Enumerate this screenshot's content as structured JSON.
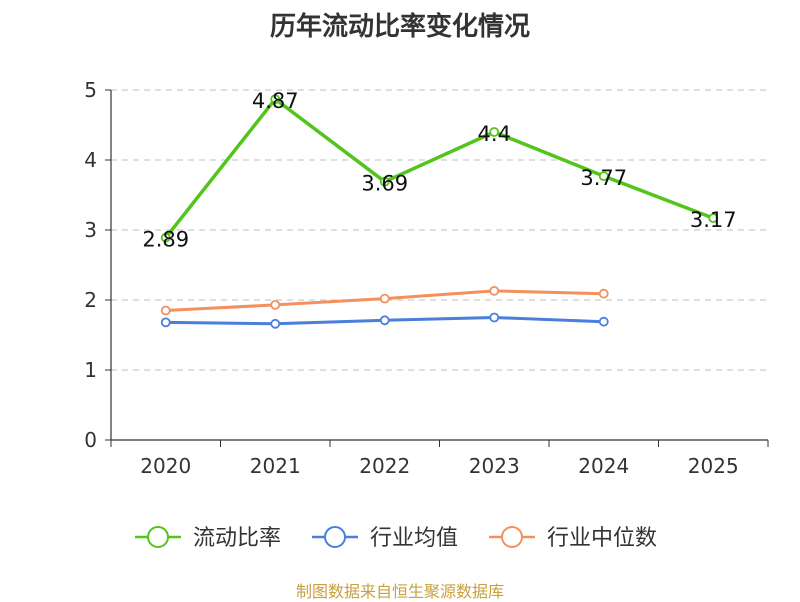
{
  "chart_data": {
    "type": "line",
    "title": "历年流动比率变化情况",
    "categories": [
      "2020",
      "2021",
      "2022",
      "2023",
      "2024",
      "2025"
    ],
    "ylim": [
      0,
      5
    ],
    "yticks": [
      0,
      1,
      2,
      3,
      4,
      5
    ],
    "grid": "dashed-horizontal",
    "legend_position": "bottom",
    "series": [
      {
        "name": "流动比率",
        "color": "#52c41a",
        "values": [
          2.89,
          4.87,
          3.69,
          4.4,
          3.77,
          3.17
        ],
        "labels": [
          "2.89",
          "4.87",
          "3.69",
          "4.4",
          "3.77",
          "3.17"
        ]
      },
      {
        "name": "行业均值",
        "color": "#4a7fdc",
        "values": [
          1.68,
          1.66,
          1.71,
          1.75,
          1.69,
          null
        ]
      },
      {
        "name": "行业中位数",
        "color": "#f4905e",
        "values": [
          1.85,
          1.93,
          2.02,
          2.13,
          2.09,
          null
        ]
      }
    ]
  },
  "footer": {
    "source": "制图数据来自恒生聚源数据库"
  }
}
